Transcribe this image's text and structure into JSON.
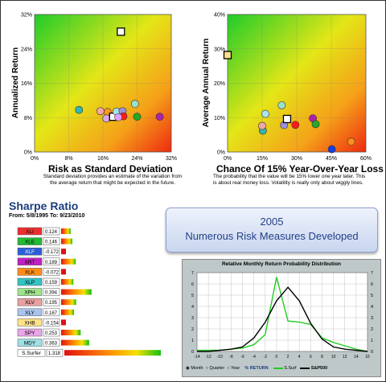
{
  "chart_data": [
    {
      "type": "scatter",
      "title": "",
      "xlabel": "Risk as Standard Deviation",
      "ylabel": "Annualized Return",
      "xlim": [
        0,
        32
      ],
      "ylim": [
        0,
        32
      ],
      "xticks": [
        "0%",
        "8%",
        "16%",
        "24%",
        "32%"
      ],
      "yticks": [
        "0%",
        "8%",
        "16%",
        "24%",
        "32%"
      ],
      "caption": [
        "Standard deviation provides an estimate of the variation from",
        "the average return that might be expected in the future."
      ],
      "points": [
        {
          "x": 20.2,
          "y": 28.0,
          "color": "#ffffff",
          "shape": "square"
        },
        {
          "x": 10.4,
          "y": 9.8,
          "color": "#2fb7b0"
        },
        {
          "x": 15.4,
          "y": 9.5,
          "color": "#f2a7a7"
        },
        {
          "x": 17.1,
          "y": 9.3,
          "color": "#ff9a20"
        },
        {
          "x": 16.8,
          "y": 7.8,
          "color": "#d9a8e8"
        },
        {
          "x": 18.4,
          "y": 8.2,
          "color": "#ffffff",
          "shape": "square"
        },
        {
          "x": 19.2,
          "y": 9.4,
          "color": "#a8e3ee"
        },
        {
          "x": 20.6,
          "y": 9.5,
          "color": "#9a8fe0"
        },
        {
          "x": 20.8,
          "y": 8.3,
          "color": "#ff1a1a"
        },
        {
          "x": 19.6,
          "y": 8.1,
          "color": "#e0a0ff"
        },
        {
          "x": 23.5,
          "y": 11.2,
          "color": "#9be0c8"
        },
        {
          "x": 24.0,
          "y": 8.2,
          "color": "#22aa22"
        },
        {
          "x": 29.3,
          "y": 8.2,
          "color": "#b020b0"
        }
      ]
    },
    {
      "type": "scatter",
      "title": "",
      "xlabel": "Chance Of 15% Year-Over-Year Loss",
      "ylabel": "Average Annual Return",
      "xlim": [
        0,
        60
      ],
      "ylim": [
        0,
        40
      ],
      "xticks": [
        "0%",
        "15%",
        "30%",
        "45%",
        "60%"
      ],
      "yticks": [
        "0%",
        "10%",
        "20%",
        "30%",
        "40%"
      ],
      "caption": [
        "The probability that the value will be 15% lower one year later. This",
        "is about real money loss. Volatility is really only about wiggly lines."
      ],
      "points": [
        {
          "x": 0.0,
          "y": 28.2,
          "color": "#ffe08a",
          "shape": "square"
        },
        {
          "x": 15.3,
          "y": 6.2,
          "color": "#2fb7b0"
        },
        {
          "x": 16.4,
          "y": 11.1,
          "color": "#a8e3ee"
        },
        {
          "x": 15.0,
          "y": 7.6,
          "color": "#f2a7a7"
        },
        {
          "x": 23.5,
          "y": 13.6,
          "color": "#9be0c8"
        },
        {
          "x": 24.5,
          "y": 7.8,
          "color": "#9a8fe0"
        },
        {
          "x": 25.8,
          "y": 9.6,
          "color": "#ffffff",
          "shape": "square"
        },
        {
          "x": 29.4,
          "y": 7.9,
          "color": "#ff1a1a"
        },
        {
          "x": 37.0,
          "y": 9.8,
          "color": "#b020b0"
        },
        {
          "x": 38.2,
          "y": 8.1,
          "color": "#22aa22"
        },
        {
          "x": 45.2,
          "y": 0.8,
          "color": "#1a3de0"
        },
        {
          "x": 53.6,
          "y": 3.0,
          "color": "#ff8c1a"
        }
      ]
    },
    {
      "type": "bar",
      "title": "Sharpe Ratio",
      "subtitle": "From: 5/8/1995  To: 9/23/2010",
      "categories": [
        "XLI",
        "XLE",
        "XLF",
        "XRT",
        "XLK",
        "XLP",
        "XPH",
        "XLV",
        "XLY",
        "XHB",
        "SPY",
        "MDY",
        "S.Surfer"
      ],
      "values": [
        0.124,
        0.146,
        -0.172,
        0.189,
        -0.072,
        0.159,
        0.394,
        0.195,
        0.167,
        -0.154,
        0.253,
        0.363,
        1.318
      ],
      "labels": [
        "0.124",
        "0.146",
        "-0.172",
        "0.189",
        "-0.072",
        "0.159",
        "0.394",
        "0.195",
        "0.167",
        "-0.154",
        "0.253",
        "0.363",
        "1.318"
      ],
      "tag_colors": [
        "#ee2e2e",
        "#22bb33",
        "#2b5fd9",
        "#c020c0",
        "#ff8c1a",
        "#33c4c4",
        "#9ee38b",
        "#e8a0a0",
        "#aac4ee",
        "#ffe28a",
        "#e8a6e8",
        "#9fe0e8",
        "#ffffff"
      ]
    },
    {
      "type": "line",
      "title": "Relative Monthly Return Probability Distribution",
      "x": [
        -14,
        -12,
        -10,
        -8,
        -6,
        -4,
        -2,
        0,
        2,
        4,
        6,
        8,
        10,
        12,
        14,
        16
      ],
      "xticks": [
        "-14",
        "-12",
        "-10",
        "-8",
        "-6",
        "-4",
        "-2",
        "0",
        "2",
        "4",
        "6",
        "8",
        "10",
        "12",
        "14",
        "16"
      ],
      "ylim": [
        0,
        7
      ],
      "yticks": [
        "0",
        "1",
        "2",
        "3",
        "4",
        "5",
        "6",
        "7"
      ],
      "series": [
        {
          "name": "S.Surf",
          "color": "#22cc22",
          "values": [
            0.1,
            0.1,
            0.1,
            0.2,
            0.3,
            0.6,
            1.5,
            6.6,
            2.7,
            2.6,
            2.4,
            1.2,
            0.8,
            0.5,
            0.2,
            0.0
          ]
        },
        {
          "name": "S&P500",
          "color": "#000000",
          "values": [
            0.0,
            0.0,
            0.1,
            0.2,
            0.4,
            1.2,
            2.6,
            4.5,
            5.7,
            4.5,
            2.5,
            1.1,
            0.4,
            0.2,
            0.1,
            0.0
          ]
        }
      ],
      "controls": {
        "options": [
          "Month",
          "Quarter",
          "Year"
        ],
        "selected": "Month",
        "return_label": "% RETURN"
      }
    }
  ],
  "banner": {
    "year": "2005",
    "text": "Numerous Risk Measures Developed"
  }
}
